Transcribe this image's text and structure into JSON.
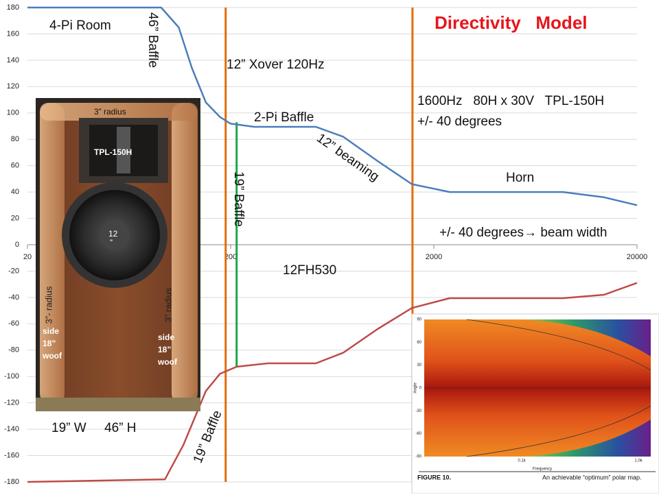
{
  "chart_data": {
    "type": "line",
    "title": "Directivity   Model",
    "xscale": "log",
    "xlim": [
      20,
      20000
    ],
    "xticks": [
      20,
      200,
      2000,
      20000
    ],
    "ylim": [
      -180,
      180
    ],
    "yticks": [
      -180,
      -160,
      -140,
      -120,
      -100,
      -80,
      -60,
      -40,
      -20,
      0,
      20,
      40,
      60,
      80,
      100,
      120,
      140,
      160,
      180
    ],
    "grid": true,
    "series": [
      {
        "name": "upper",
        "color": "#4a7ebb",
        "x": [
          20,
          91,
          111,
          129,
          151,
          177,
          199,
          261,
          525,
          716,
          1057,
          1559,
          2392,
          8630,
          13760,
          20000
        ],
        "values": [
          180,
          180,
          165,
          134,
          108,
          97,
          92,
          89.5,
          89.5,
          82,
          63.5,
          46,
          40,
          40,
          36,
          30
        ]
      },
      {
        "name": "lower",
        "color": "#be4b48",
        "x": [
          20,
          95,
          117,
          151,
          177,
          214,
          305,
          525,
          716,
          1057,
          1559,
          2392,
          8630,
          13760,
          20000
        ],
        "values": [
          -180,
          -178,
          -152,
          -111,
          -98,
          -92.6,
          -90,
          -90,
          -82,
          -64,
          -48,
          -40.6,
          -40.6,
          -38,
          -29
        ]
      }
    ],
    "reference_lines": [
      {
        "x": 189,
        "y1": 180,
        "y2": -180,
        "color": "#e36c09"
      },
      {
        "x": 1570,
        "y1": 180,
        "y2": -180,
        "color": "#e36c09"
      },
      {
        "x": 214,
        "y1": 93,
        "y2": -93,
        "color": "#1aa64a"
      }
    ],
    "annotations": [
      "4-Pi Room",
      "46” Baffle",
      "12” Xover 120Hz",
      "2-Pi Baffle",
      "12” beaming",
      "1600Hz   80H x 30V   TPL-150H",
      "+/- 40 degrees",
      "Horn",
      "+/- 40 degrees→ beam width",
      "19” Baffle",
      "12FH530",
      "19” Baffle",
      "19” W     46” H"
    ]
  },
  "photo": {
    "labels": [
      "3” radius",
      "TPL-150H",
      "12",
      "”",
      "3”- radius",
      "3” radius",
      "side",
      "18”",
      "woof",
      "side",
      "18”",
      "woof"
    ]
  },
  "inset": {
    "yticks": [
      90,
      60,
      30,
      0,
      -30,
      -60,
      -90
    ],
    "xticks": [
      "0.1k",
      "1.0k"
    ],
    "ylabel": "Angle",
    "xlabel": "Frequency",
    "figure": "FIGURE 10.",
    "caption": "An achievable “optimum” polar map."
  }
}
